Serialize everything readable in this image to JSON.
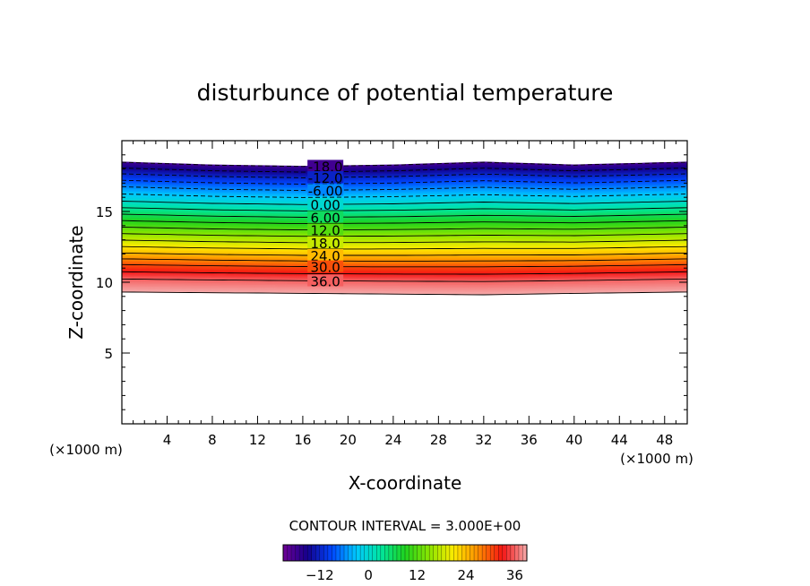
{
  "chart_data": {
    "type": "contour",
    "title": "disturbunce of potential temperature",
    "xlabel": "X-coordinate",
    "ylabel": "Z-coordinate",
    "x_units": "(×1000 m)",
    "z_units": "(×1000 m)",
    "xlim": [
      0,
      50
    ],
    "ylim": [
      0,
      20
    ],
    "x_ticks": [
      4,
      8,
      12,
      16,
      20,
      24,
      28,
      32,
      36,
      40,
      44,
      48
    ],
    "y_ticks": [
      5,
      10,
      15
    ],
    "contour_interval_text": "CONTOUR INTERVAL = 3.000E+00",
    "contour_interval": 3.0,
    "contour_labels": [
      "-18.0",
      "-12.0",
      "-6.00",
      "0.00",
      "6.00",
      "12.0",
      "18.0",
      "24.0",
      "30.0",
      "36.0"
    ],
    "colorbar_ticks": [
      -12,
      0,
      12,
      24,
      36
    ],
    "colorbar_range": [
      -21,
      39
    ],
    "top_boundary_z": [
      [
        0,
        18.5
      ],
      [
        8,
        18.3
      ],
      [
        16,
        18.2
      ],
      [
        24,
        18.3
      ],
      [
        32,
        18.5
      ],
      [
        40,
        18.3
      ],
      [
        50,
        18.5
      ]
    ],
    "bottom_boundary_z": [
      [
        0,
        9.3
      ],
      [
        16,
        9.2
      ],
      [
        32,
        9.1
      ],
      [
        40,
        9.2
      ],
      [
        50,
        9.3
      ]
    ],
    "levels_z_at_x18": [
      {
        "value": -18,
        "z": 18.2
      },
      {
        "value": -12,
        "z": 17.4
      },
      {
        "value": -6,
        "z": 16.5
      },
      {
        "value": 0,
        "z": 15.5
      },
      {
        "value": 6,
        "z": 14.6
      },
      {
        "value": 12,
        "z": 13.7
      },
      {
        "value": 18,
        "z": 12.8
      },
      {
        "value": 24,
        "z": 11.9
      },
      {
        "value": 30,
        "z": 11.1
      },
      {
        "value": 36,
        "z": 10.1
      }
    ]
  }
}
